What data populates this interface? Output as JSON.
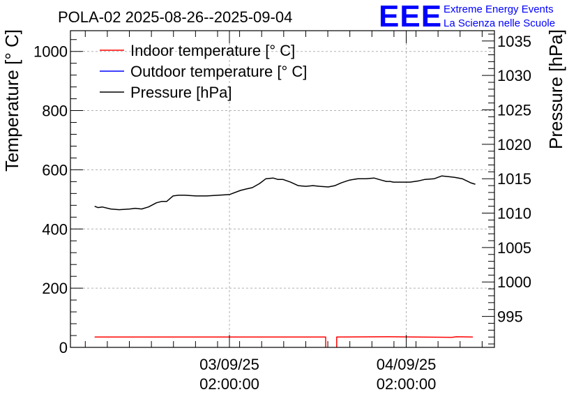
{
  "chart_data": {
    "type": "line",
    "title": "POLA-02 2025-08-26--2025-09-04",
    "ylabel": "Temperature [° C]",
    "y2label": "Pressure [hPa]",
    "ylim": [
      0,
      1070
    ],
    "y2lim": [
      990.5,
      1036.5
    ],
    "y_ticks": [
      0,
      200,
      400,
      600,
      800,
      1000
    ],
    "y2_ticks": [
      995,
      1000,
      1005,
      1010,
      1015,
      1020,
      1025,
      1030,
      1035
    ],
    "xlim": [
      0,
      100
    ],
    "x_ticks": [
      {
        "x": 37.5,
        "date": "03/09/25",
        "time": "02:00:00"
      },
      {
        "x": 79.2,
        "date": "04/09/25",
        "time": "02:00:00"
      }
    ],
    "legend": [
      "Indoor temperature [° C]",
      "Outdoor temperature [° C]",
      "Pressure [hPa]"
    ],
    "series": [
      {
        "name": "Indoor temperature [° C]",
        "color": "#ff0000",
        "axis": "left",
        "segments": [
          {
            "x": [
              5.7,
              20,
              40,
              55,
              60.2,
              60.2
            ],
            "y": [
              35,
              35,
              35,
              35,
              35,
              0
            ]
          },
          {
            "x": [
              62.8,
              62.8,
              75,
              90,
              91,
              94.9
            ],
            "y": [
              0,
              35,
              36,
              34,
              36,
              35
            ]
          }
        ]
      },
      {
        "name": "Outdoor temperature [° C]",
        "color": "#0000ff",
        "axis": "left",
        "segments": []
      },
      {
        "name": "Pressure [hPa]",
        "color": "#000000",
        "axis": "right",
        "segments": [
          {
            "x": [
              5.7,
              6.5,
              7.5,
              9.5,
              11.5,
              14,
              15.3,
              16.8,
              18.4,
              20.3,
              21.5,
              22.7,
              24.2,
              25.5,
              27,
              29.6,
              32.1,
              34.9,
              37.5,
              40.1,
              41.4,
              42.9,
              44.6,
              46.1,
              47.8,
              48.9,
              50.1,
              51.9,
              53.7,
              55.5,
              57.2,
              58.8,
              60.8,
              62.4,
              63.9,
              65.8,
              67.8,
              69.7,
              71.6,
              73.3,
              74.5,
              75.4,
              76.2,
              77.8,
              80.1,
              82.2,
              83.6,
              85.8,
              87.6,
              89.2,
              90.6,
              92.4,
              94.4,
              95.5
            ],
            "y": [
              1011.0,
              1010.8,
              1010.9,
              1010.6,
              1010.5,
              1010.6,
              1010.7,
              1010.6,
              1010.9,
              1011.5,
              1011.7,
              1011.7,
              1012.5,
              1012.6,
              1012.6,
              1012.5,
              1012.5,
              1012.6,
              1012.7,
              1013.3,
              1013.5,
              1013.7,
              1014.3,
              1015.0,
              1015.1,
              1014.9,
              1014.9,
              1014.5,
              1014.0,
              1013.9,
              1014.0,
              1013.9,
              1013.8,
              1014.0,
              1014.4,
              1014.8,
              1015.0,
              1015.0,
              1015.1,
              1014.8,
              1014.6,
              1014.6,
              1014.5,
              1014.5,
              1014.5,
              1014.7,
              1014.9,
              1015.0,
              1015.4,
              1015.3,
              1015.2,
              1015.0,
              1014.4,
              1014.2
            ]
          }
        ]
      }
    ]
  },
  "logo": {
    "letters": "EEE",
    "line1": "Extreme Energy Events",
    "line2": "La Scienza nelle Scuole",
    "color": "#0000ff"
  }
}
